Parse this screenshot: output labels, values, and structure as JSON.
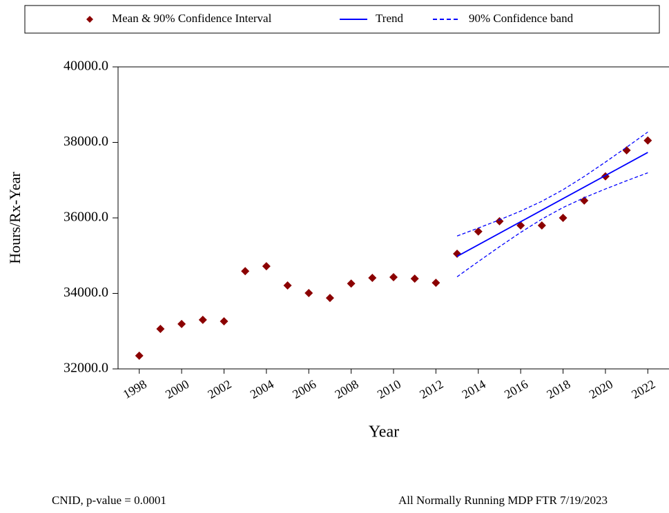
{
  "chart_data": {
    "type": "line",
    "x_label": "Year",
    "y_label": "Hours/Rx-Year",
    "xlim": [
      1997,
      2023
    ],
    "ylim": [
      32000,
      40000
    ],
    "xticks": [
      1998,
      2000,
      2002,
      2004,
      2006,
      2008,
      2010,
      2012,
      2014,
      2016,
      2018,
      2020,
      2022
    ],
    "yticks": [
      {
        "value": 32000,
        "label": "32000.0"
      },
      {
        "value": 34000,
        "label": "34000.0"
      },
      {
        "value": 36000,
        "label": "36000.0"
      },
      {
        "value": 38000,
        "label": "38000.0"
      },
      {
        "value": 40000,
        "label": "40000.0"
      }
    ],
    "series": [
      {
        "name": "Mean & 90% Confidence Interval",
        "color": "#8b0000",
        "style": "diamond",
        "x": [
          1998,
          1999,
          2000,
          2001,
          2002,
          2003,
          2004,
          2005,
          2006,
          2007,
          2008,
          2009,
          2010,
          2011,
          2012,
          2013,
          2014,
          2015,
          2016,
          2017,
          2018,
          2019,
          2020,
          2021,
          2022
        ],
        "values": [
          32350,
          33060,
          33190,
          33300,
          33260,
          34590,
          34720,
          34210,
          34010,
          33880,
          34260,
          34410,
          34430,
          34390,
          34280,
          35050,
          35640,
          35910,
          35800,
          35800,
          36000,
          36460,
          37100,
          37790,
          38050
        ]
      },
      {
        "name": "Trend",
        "color": "#0000ff",
        "style": "solid",
        "x": [
          2013,
          2014,
          2015,
          2016,
          2017,
          2018,
          2019,
          2020,
          2021,
          2022
        ],
        "values": [
          34980,
          35286,
          35592,
          35898,
          36204,
          36510,
          36816,
          37122,
          37428,
          37734
        ]
      },
      {
        "name": "90% Confidence band",
        "color": "#0000ff",
        "style": "dashed",
        "x": [
          2013,
          2014,
          2015,
          2016,
          2017,
          2018,
          2019,
          2020,
          2021,
          2022
        ],
        "values": [
          35520,
          35730,
          35948,
          36180,
          36440,
          36746,
          37098,
          37478,
          37872,
          38274
        ]
      },
      {
        "name": null,
        "color": "#0000ff",
        "style": "dashed",
        "x": [
          2013,
          2014,
          2015,
          2016,
          2017,
          2018,
          2019,
          2020,
          2021,
          2022
        ],
        "values": [
          34440,
          34842,
          35236,
          35616,
          35968,
          36274,
          36534,
          36766,
          36984,
          37194
        ]
      }
    ],
    "footnote_left": "CNID, p-value = 0.0001",
    "footnote_right": "All Normally Running MDP FTR 7/19/2023"
  }
}
